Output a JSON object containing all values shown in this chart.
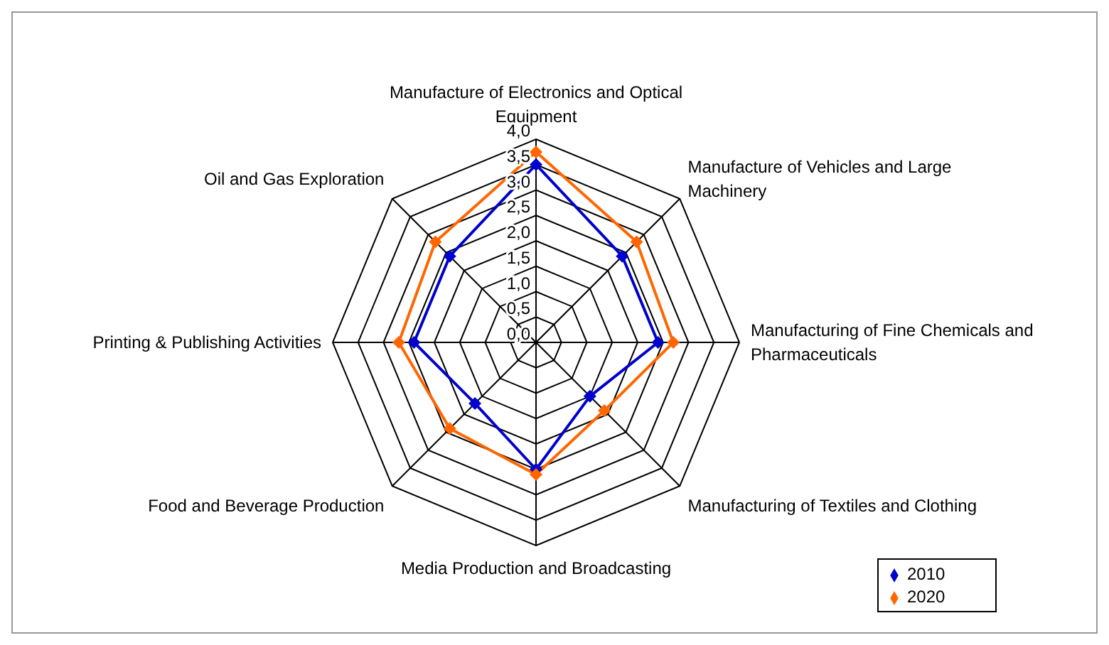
{
  "chart_data": {
    "type": "radar",
    "categories": [
      "Manufacture of Electronics and Optical Equipment",
      "Manufacture of Vehicles and Large Machinery",
      "Manufacturing of Fine Chemicals and Pharmaceuticals",
      "Manufacturing of Textiles and Clothing",
      "Media Production and Broadcasting",
      "Food and Beverage Production",
      "Printing & Publishing Activities",
      "Oil and Gas Exploration"
    ],
    "series": [
      {
        "name": "2010",
        "color": "#0000cc",
        "values": [
          3.5,
          2.4,
          2.4,
          1.5,
          2.5,
          1.7,
          2.4,
          2.4
        ]
      },
      {
        "name": "2020",
        "color": "#ff6600",
        "values": [
          3.75,
          2.8,
          2.7,
          1.9,
          2.6,
          2.4,
          2.7,
          2.8
        ]
      }
    ],
    "ylim": [
      0,
      4
    ],
    "yticks": [
      {
        "value": 0,
        "label": "0,0"
      },
      {
        "value": 0.5,
        "label": "0,5"
      },
      {
        "value": 1,
        "label": "1,0"
      },
      {
        "value": 1.5,
        "label": "1,5"
      },
      {
        "value": 2,
        "label": "2,0"
      },
      {
        "value": 2.5,
        "label": "2,5"
      },
      {
        "value": 3,
        "label": "3,0"
      },
      {
        "value": 3.5,
        "label": "3,5"
      },
      {
        "value": 4,
        "label": "4,0"
      }
    ],
    "grid": true,
    "legend": "bottom right",
    "marker": "diamond",
    "line_style": "solid"
  }
}
